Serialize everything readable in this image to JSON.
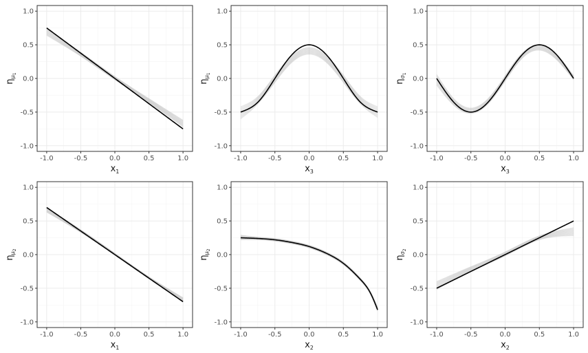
{
  "chart_data": [
    {
      "type": "line",
      "xlabel": {
        "base": "x",
        "sub": "1"
      },
      "ylabel": {
        "base": "η",
        "sub": "μ",
        "subsub": "1"
      },
      "xlim": [
        -1,
        1
      ],
      "ylim": [
        -1,
        1
      ],
      "xticks": [
        "-1.0",
        "-0.5",
        "0.0",
        "0.5",
        "1.0"
      ],
      "yticks": [
        "1.0",
        "0.5",
        "0.0",
        "-0.5",
        "-1.0"
      ],
      "grid": true,
      "true_function": {
        "x": [
          -1.0,
          -0.5,
          0.0,
          0.5,
          1.0
        ],
        "y": [
          0.75,
          0.375,
          0.0,
          -0.375,
          -0.75
        ]
      },
      "estimate_band": {
        "x": [
          -1.0,
          -0.5,
          0.0,
          0.5,
          1.0
        ],
        "lower": [
          0.64,
          0.33,
          -0.02,
          -0.36,
          -0.72
        ],
        "upper": [
          0.74,
          0.39,
          0.03,
          -0.3,
          -0.62
        ]
      }
    },
    {
      "type": "line",
      "xlabel": {
        "base": "x",
        "sub": "3"
      },
      "ylabel": {
        "base": "η",
        "sub": "μ",
        "subsub": "1"
      },
      "xlim": [
        -1,
        1
      ],
      "ylim": [
        -1,
        1
      ],
      "xticks": [
        "-1.0",
        "-0.5",
        "0.0",
        "0.5",
        "1.0"
      ],
      "yticks": [
        "1.0",
        "0.5",
        "0.0",
        "-0.5",
        "-1.0"
      ],
      "grid": true,
      "true_function": {
        "x": [
          -1.0,
          -0.75,
          -0.5,
          -0.25,
          0.0,
          0.25,
          0.5,
          0.75,
          1.0
        ],
        "y": [
          -0.5,
          -0.354,
          0.0,
          0.354,
          0.5,
          0.354,
          0.0,
          -0.354,
          -0.5
        ]
      },
      "estimate_band": {
        "x": [
          -1.0,
          -0.75,
          -0.5,
          -0.25,
          0.0,
          0.25,
          0.5,
          0.75,
          1.0
        ],
        "lower": [
          -0.6,
          -0.38,
          -0.06,
          0.24,
          0.36,
          0.24,
          -0.06,
          -0.38,
          -0.58
        ],
        "upper": [
          -0.42,
          -0.27,
          0.05,
          0.34,
          0.46,
          0.34,
          0.05,
          -0.27,
          -0.42
        ]
      }
    },
    {
      "type": "line",
      "xlabel": {
        "base": "x",
        "sub": "3"
      },
      "ylabel": {
        "base": "η",
        "sub": "σ",
        "subsub": "1"
      },
      "xlim": [
        -1,
        1
      ],
      "ylim": [
        -1,
        1
      ],
      "xticks": [
        "-1.0",
        "-0.5",
        "0.0",
        "0.5",
        "1.0"
      ],
      "yticks": [
        "1.0",
        "0.5",
        "0.0",
        "-0.5",
        "-1.0"
      ],
      "grid": true,
      "true_function": {
        "x": [
          -1.0,
          -0.75,
          -0.5,
          -0.25,
          0.0,
          0.25,
          0.5,
          0.75,
          1.0
        ],
        "y": [
          0.0,
          -0.354,
          -0.5,
          -0.354,
          0.0,
          0.354,
          0.5,
          0.354,
          0.0
        ]
      },
      "estimate_band": {
        "x": [
          -1.0,
          -0.75,
          -0.5,
          -0.25,
          0.0,
          0.25,
          0.5,
          0.75,
          1.0
        ],
        "lower": [
          -0.1,
          -0.4,
          -0.52,
          -0.38,
          -0.04,
          0.3,
          0.42,
          0.28,
          -0.02
        ],
        "upper": [
          0.06,
          -0.3,
          -0.44,
          -0.3,
          0.04,
          0.38,
          0.5,
          0.36,
          0.04
        ]
      }
    },
    {
      "type": "line",
      "xlabel": {
        "base": "x",
        "sub": "1"
      },
      "ylabel": {
        "base": "η",
        "sub": "μ",
        "subsub": "2"
      },
      "xlim": [
        -1,
        1
      ],
      "ylim": [
        -1,
        1
      ],
      "xticks": [
        "-1.0",
        "-0.5",
        "0.0",
        "0.5",
        "1.0"
      ],
      "yticks": [
        "1.0",
        "0.5",
        "0.0",
        "-0.5",
        "-1.0"
      ],
      "grid": true,
      "true_function": {
        "x": [
          -1.0,
          -0.5,
          0.0,
          0.5,
          1.0
        ],
        "y": [
          0.7,
          0.35,
          0.0,
          -0.35,
          -0.7
        ]
      },
      "estimate_band": {
        "x": [
          -1.0,
          -0.5,
          0.0,
          0.5,
          1.0
        ],
        "lower": [
          0.63,
          0.33,
          -0.01,
          -0.36,
          -0.7
        ],
        "upper": [
          0.7,
          0.37,
          0.02,
          -0.33,
          -0.64
        ]
      }
    },
    {
      "type": "line",
      "xlabel": {
        "base": "x",
        "sub": "2"
      },
      "ylabel": {
        "base": "η",
        "sub": "μ",
        "subsub": "2"
      },
      "xlim": [
        -1,
        1
      ],
      "ylim": [
        -1,
        1
      ],
      "xticks": [
        "-1.0",
        "-0.5",
        "0.0",
        "0.5",
        "1.0"
      ],
      "yticks": [
        "1.0",
        "0.5",
        "0.0",
        "-0.5",
        "-1.0"
      ],
      "grid": true,
      "true_function": {
        "x": [
          -1.0,
          -0.75,
          -0.5,
          -0.25,
          0.0,
          0.25,
          0.5,
          0.75,
          0.9,
          1.0
        ],
        "y": [
          0.25,
          0.24,
          0.22,
          0.18,
          0.12,
          0.02,
          -0.13,
          -0.37,
          -0.58,
          -0.82
        ]
      },
      "estimate_band": {
        "x": [
          -1.0,
          -0.75,
          -0.5,
          -0.25,
          0.0,
          0.25,
          0.5,
          0.75,
          0.9,
          1.0
        ],
        "lower": [
          0.22,
          0.22,
          0.2,
          0.16,
          0.1,
          0.0,
          -0.15,
          -0.39,
          -0.6,
          -0.84
        ],
        "upper": [
          0.29,
          0.26,
          0.24,
          0.2,
          0.14,
          0.04,
          -0.11,
          -0.35,
          -0.56,
          -0.78
        ]
      }
    },
    {
      "type": "line",
      "xlabel": {
        "base": "x",
        "sub": "2"
      },
      "ylabel": {
        "base": "η",
        "sub": "σ",
        "subsub": "2"
      },
      "xlim": [
        -1,
        1
      ],
      "ylim": [
        -1,
        1
      ],
      "xticks": [
        "-1.0",
        "-0.5",
        "0.0",
        "0.5",
        "1.0"
      ],
      "yticks": [
        "1.0",
        "0.5",
        "0.0",
        "-0.5",
        "-1.0"
      ],
      "grid": true,
      "true_function": {
        "x": [
          -1.0,
          -0.5,
          0.0,
          0.5,
          1.0
        ],
        "y": [
          -0.5,
          -0.25,
          0.0,
          0.25,
          0.5
        ]
      },
      "estimate_band": {
        "x": [
          -1.0,
          -0.5,
          0.0,
          0.5,
          1.0
        ],
        "lower": [
          -0.52,
          -0.25,
          -0.02,
          0.22,
          0.28
        ],
        "upper": [
          -0.4,
          -0.18,
          0.04,
          0.28,
          0.4
        ]
      }
    }
  ]
}
